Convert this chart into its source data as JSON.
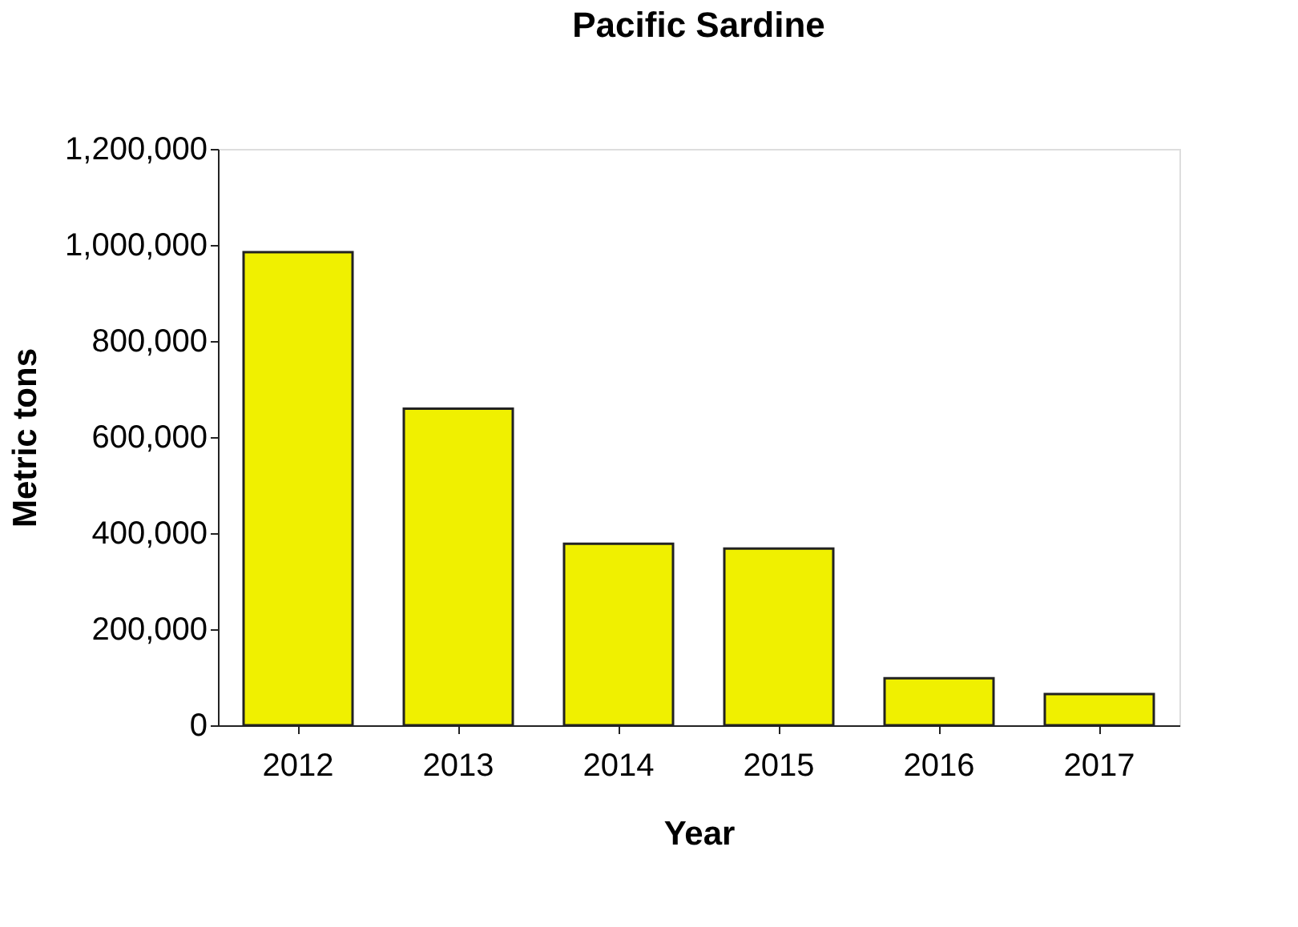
{
  "chart_data": {
    "type": "bar",
    "title": "Pacific Sardine",
    "xlabel": "Year",
    "ylabel": "Metric tons",
    "categories": [
      "2012",
      "2013",
      "2014",
      "2015",
      "2016",
      "2017"
    ],
    "values": [
      985000,
      659000,
      378000,
      368000,
      98000,
      65000
    ],
    "color": "#f0f000",
    "ylim": [
      0,
      1200000
    ],
    "yticks": [
      {
        "value": 0,
        "label": "0"
      },
      {
        "value": 200000,
        "label": "200,000"
      },
      {
        "value": 400000,
        "label": "400,000"
      },
      {
        "value": 600000,
        "label": "600,000"
      },
      {
        "value": 800000,
        "label": "800,000"
      },
      {
        "value": 1000000,
        "label": "1,000,000"
      },
      {
        "value": 1200000,
        "label": "1,200,000"
      }
    ],
    "grid": false
  }
}
